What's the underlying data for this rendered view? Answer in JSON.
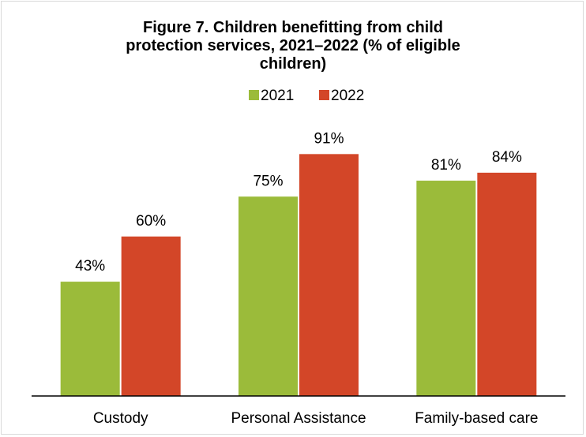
{
  "chart_data": {
    "type": "bar",
    "title_lines": [
      "Figure 7. Children benefitting from child",
      "protection services, 2021–2022 (% of eligible",
      "children)"
    ],
    "categories": [
      "Custody",
      "Personal Assistance",
      "Family-based care"
    ],
    "series": [
      {
        "name": "2021",
        "values": [
          43,
          75,
          81
        ],
        "labels": [
          "43%",
          "75%",
          "81%"
        ],
        "color": "#9bbb3a"
      },
      {
        "name": "2022",
        "values": [
          60,
          91,
          84
        ],
        "labels": [
          "60%",
          "91%",
          "84%"
        ],
        "color": "#d34628"
      }
    ],
    "ylim": [
      0,
      100
    ],
    "legend_position": "top",
    "grid": false,
    "axis_color": "#000000"
  }
}
